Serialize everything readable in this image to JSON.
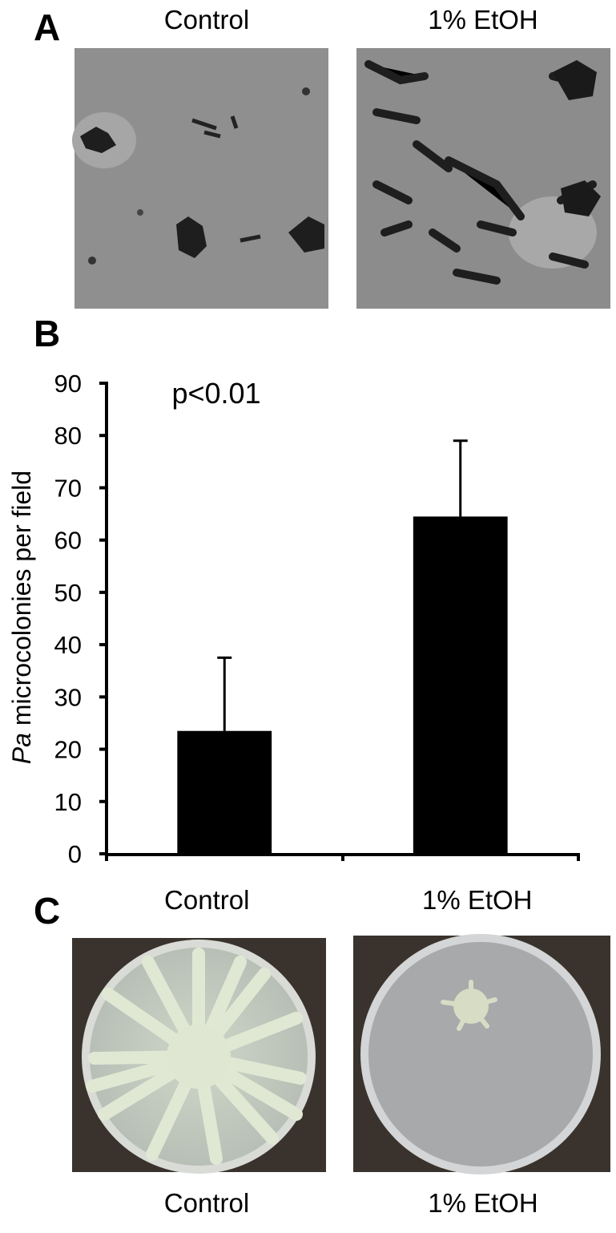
{
  "figure": {
    "panel_a": {
      "label": "A",
      "titles": [
        "Control",
        "1% EtOH"
      ]
    },
    "panel_c": {
      "label": "C",
      "captions": [
        "Control",
        "1% EtOH"
      ]
    }
  },
  "chart_data": {
    "type": "bar",
    "panel_label": "B",
    "annotation": "p<0.01",
    "y_label_italic": "Pa",
    "y_label": " microcolonies per field",
    "categories": [
      "Control",
      "1% EtOH"
    ],
    "values": [
      23.5,
      64.5
    ],
    "errors": [
      14,
      14.5
    ],
    "color": "#000000",
    "ylim": [
      0,
      90
    ],
    "yticks": [
      0,
      10,
      20,
      30,
      40,
      50,
      60,
      70,
      80,
      90
    ],
    "grid": false
  }
}
